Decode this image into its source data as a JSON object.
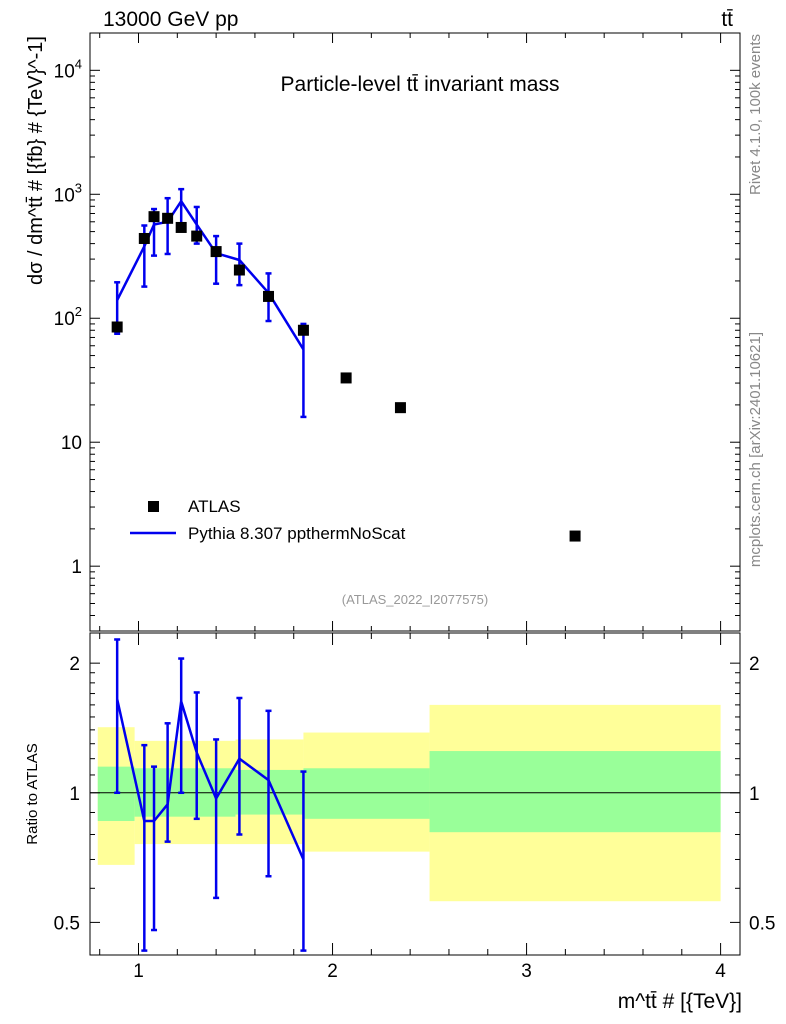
{
  "header": {
    "left": "13000 GeV pp",
    "right": "tt̄"
  },
  "side": {
    "rivet": "Rivet 4.1.0,  100k events",
    "mcplots": "mcplots.cern.ch [arXiv:2401.10621]"
  },
  "colors": {
    "data": "#000000",
    "mc": "#0000ee",
    "band_inner": "#99ff99",
    "band_outer": "#ffff99"
  },
  "chart_data": [
    {
      "type": "scatter",
      "title": "Particle-level tt̄ invariant mass",
      "watermark": "(ATLAS_2022_I2077575)",
      "ylabel": "dσ / dm^tt̄ # [{fb} # {TeV}^-1]",
      "yscale": "log",
      "ylim": [
        0.3,
        20000
      ],
      "xlim": [
        0.75,
        4.1
      ],
      "yticks": [
        {
          "v": 1,
          "label": "1"
        },
        {
          "v": 10,
          "label": "10"
        },
        {
          "v": 100,
          "base": "10",
          "exp": "2"
        },
        {
          "v": 1000,
          "base": "10",
          "exp": "3"
        },
        {
          "v": 10000,
          "base": "10",
          "exp": "4"
        }
      ],
      "legend": [
        {
          "label": "ATLAS",
          "kind": "marker"
        },
        {
          "label": "Pythia 8.307 ppthermNoScat",
          "kind": "line"
        }
      ],
      "series": [
        {
          "name": "ATLAS",
          "points": [
            {
              "x": 0.89,
              "y": 85
            },
            {
              "x": 1.03,
              "y": 440
            },
            {
              "x": 1.08,
              "y": 660
            },
            {
              "x": 1.15,
              "y": 640
            },
            {
              "x": 1.22,
              "y": 540
            },
            {
              "x": 1.3,
              "y": 460
            },
            {
              "x": 1.4,
              "y": 345
            },
            {
              "x": 1.52,
              "y": 245
            },
            {
              "x": 1.67,
              "y": 150
            },
            {
              "x": 1.85,
              "y": 80
            },
            {
              "x": 2.07,
              "y": 33
            },
            {
              "x": 2.35,
              "y": 19
            },
            {
              "x": 3.25,
              "y": 1.75
            }
          ]
        },
        {
          "name": "Pythia 8.307 ppthermNoScat",
          "points": [
            {
              "x": 0.89,
              "y": 140,
              "lo": 75,
              "hi": 195
            },
            {
              "x": 1.03,
              "y": 380,
              "lo": 180,
              "hi": 560
            },
            {
              "x": 1.08,
              "y": 570,
              "lo": 320,
              "hi": 760
            },
            {
              "x": 1.15,
              "y": 600,
              "lo": 330,
              "hi": 930
            },
            {
              "x": 1.22,
              "y": 880,
              "lo": 550,
              "hi": 1100
            },
            {
              "x": 1.3,
              "y": 570,
              "lo": 400,
              "hi": 790
            },
            {
              "x": 1.4,
              "y": 335,
              "lo": 190,
              "hi": 460
            },
            {
              "x": 1.52,
              "y": 295,
              "lo": 185,
              "hi": 400
            },
            {
              "x": 1.67,
              "y": 160,
              "lo": 95,
              "hi": 230
            },
            {
              "x": 1.85,
              "y": 56,
              "lo": 16,
              "hi": 90
            }
          ]
        }
      ]
    },
    {
      "type": "line",
      "ylabel": "Ratio to ATLAS",
      "xlabel": "m^tt̄ # [{TeV}]",
      "yscale": "log",
      "ylim": [
        0.42,
        2.35
      ],
      "xlim": [
        0.75,
        4.1
      ],
      "yticks": [
        {
          "v": 0.5,
          "label": "0.5"
        },
        {
          "v": 1,
          "label": "1"
        },
        {
          "v": 2,
          "label": "2"
        }
      ],
      "xticks": [
        {
          "v": 1,
          "label": "1"
        },
        {
          "v": 2,
          "label": "2"
        },
        {
          "v": 3,
          "label": "3"
        },
        {
          "v": 4,
          "label": "4"
        }
      ],
      "bands": [
        {
          "x0": 0.79,
          "x1": 0.98,
          "in_lo": 0.86,
          "in_hi": 1.15,
          "out_lo": 0.68,
          "out_hi": 1.42
        },
        {
          "x0": 0.98,
          "x1": 1.5,
          "in_lo": 0.88,
          "in_hi": 1.14,
          "out_lo": 0.76,
          "out_hi": 1.32
        },
        {
          "x0": 1.5,
          "x1": 1.85,
          "in_lo": 0.89,
          "in_hi": 1.13,
          "out_lo": 0.76,
          "out_hi": 1.33
        },
        {
          "x0": 1.85,
          "x1": 2.5,
          "in_lo": 0.87,
          "in_hi": 1.14,
          "out_lo": 0.73,
          "out_hi": 1.38
        },
        {
          "x0": 2.5,
          "x1": 4.0,
          "in_lo": 0.81,
          "in_hi": 1.25,
          "out_lo": 0.56,
          "out_hi": 1.6
        }
      ],
      "series": [
        {
          "name": "Pythia 8.307 ppthermNoScat",
          "points": [
            {
              "x": 0.89,
              "y": 1.65,
              "lo": 1.0,
              "hi": 2.27
            },
            {
              "x": 1.03,
              "y": 0.86,
              "lo": 0.43,
              "hi": 1.29
            },
            {
              "x": 1.08,
              "y": 0.86,
              "lo": 0.48,
              "hi": 1.15
            },
            {
              "x": 1.15,
              "y": 0.94,
              "lo": 0.77,
              "hi": 1.45
            },
            {
              "x": 1.22,
              "y": 1.63,
              "lo": 1.0,
              "hi": 2.05
            },
            {
              "x": 1.3,
              "y": 1.24,
              "lo": 0.87,
              "hi": 1.71
            },
            {
              "x": 1.4,
              "y": 0.97,
              "lo": 0.57,
              "hi": 1.33
            },
            {
              "x": 1.52,
              "y": 1.2,
              "lo": 0.8,
              "hi": 1.66
            },
            {
              "x": 1.67,
              "y": 1.07,
              "lo": 0.64,
              "hi": 1.55
            },
            {
              "x": 1.85,
              "y": 0.7,
              "lo": 0.43,
              "hi": 1.12
            }
          ]
        }
      ]
    }
  ]
}
